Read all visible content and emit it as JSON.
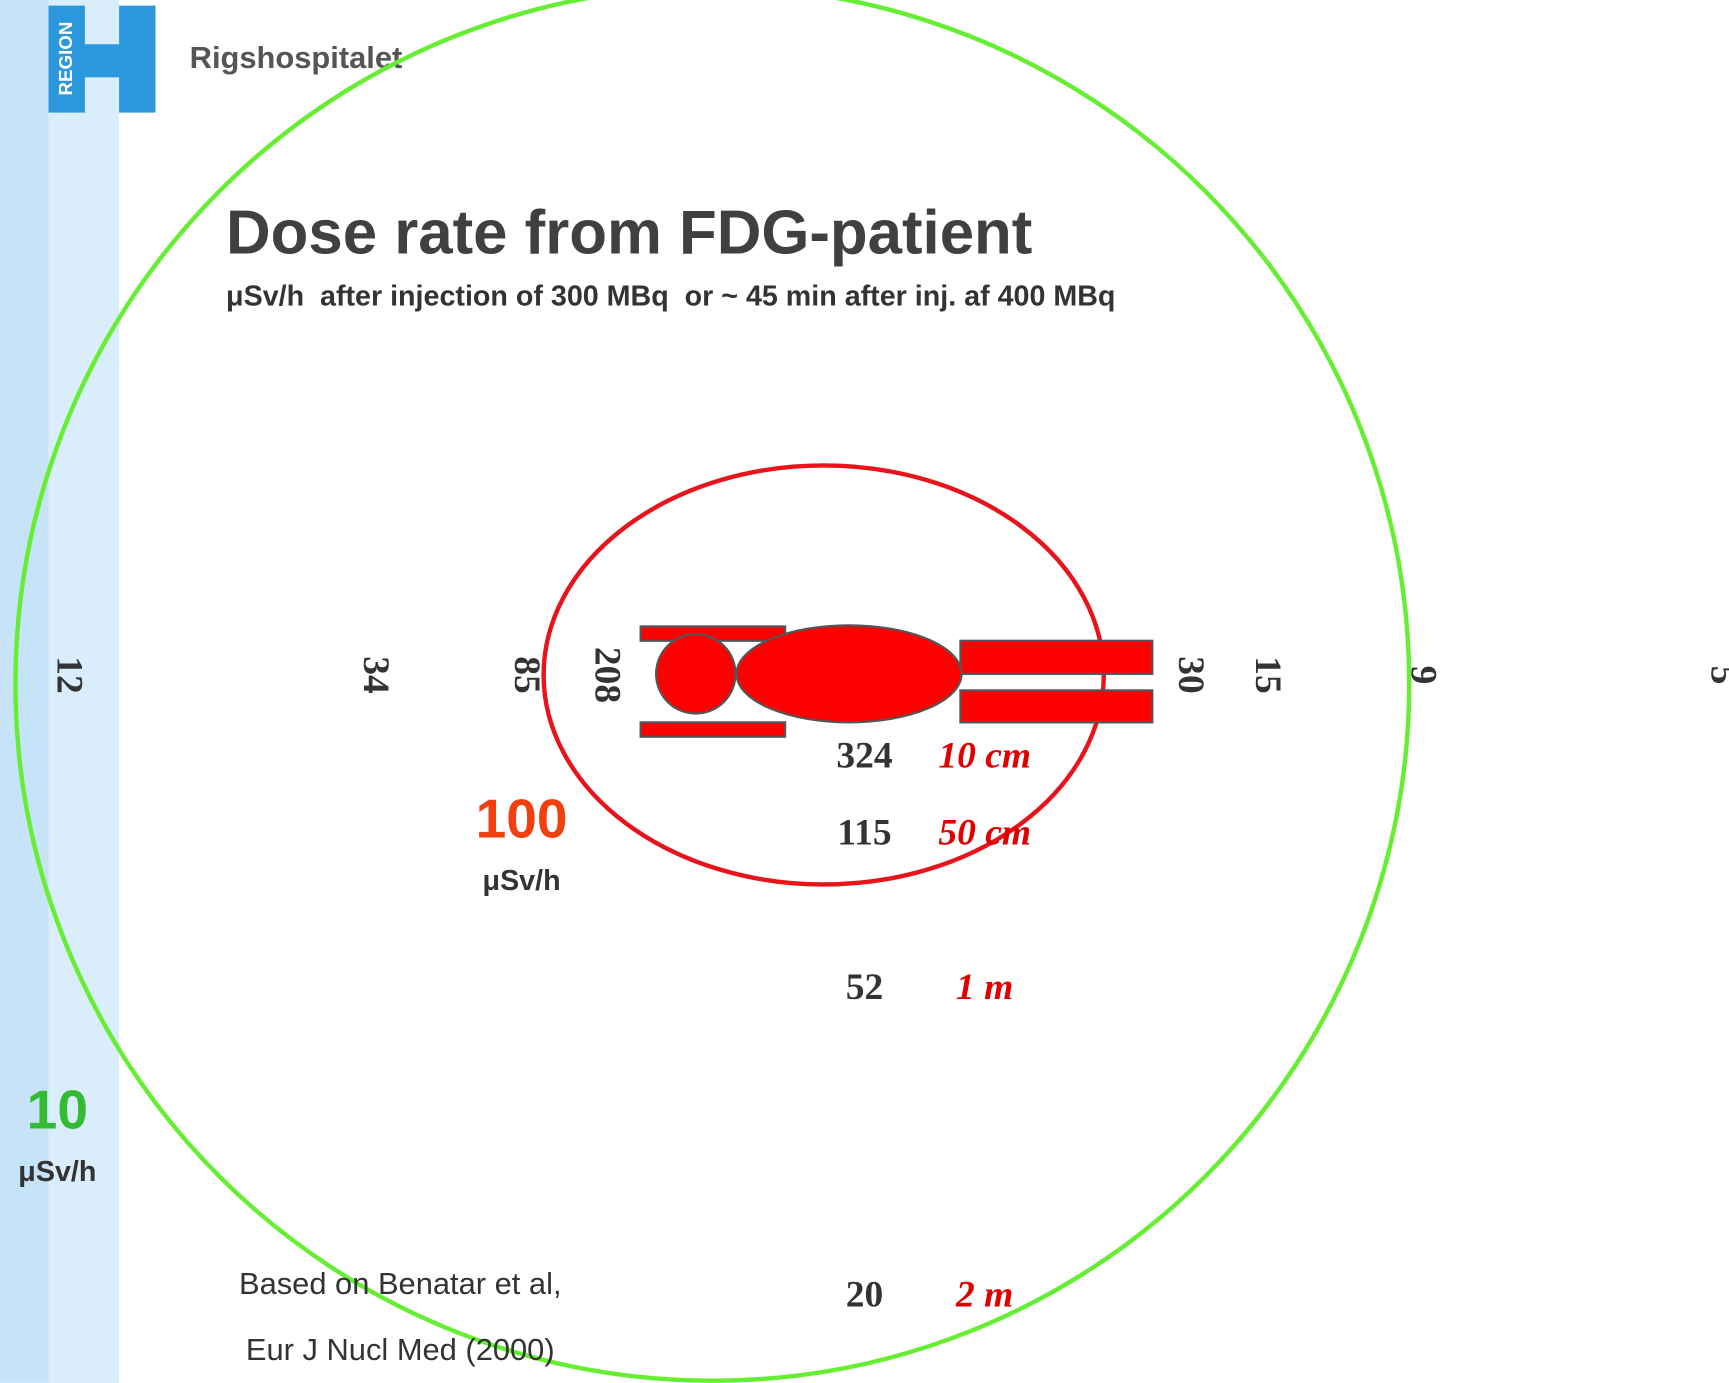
{
  "header": {
    "logo_text": "REGION",
    "organization": "Rigshospitalet"
  },
  "title": "Dose rate from FDG-patient",
  "subtitle": "μSv/h  after injection of 300 MBq  or ~ 45 min after inj. af 400 MBq",
  "side_values": [
    12,
    34,
    85,
    208,
    30,
    15,
    9,
    5
  ],
  "front_values": [
    {
      "value": 324,
      "distance": "10 cm"
    },
    {
      "value": 115,
      "distance": "50 cm"
    },
    {
      "value": 52,
      "distance": "1 m"
    },
    {
      "value": 20,
      "distance": "2 m"
    }
  ],
  "contours": [
    {
      "level": 100,
      "unit": "μSv/h"
    },
    {
      "level": 10,
      "unit": "μSv/h"
    }
  ],
  "citation": [
    "Based on Benatar et al,",
    "Eur J Nucl Med (2000)"
  ]
}
